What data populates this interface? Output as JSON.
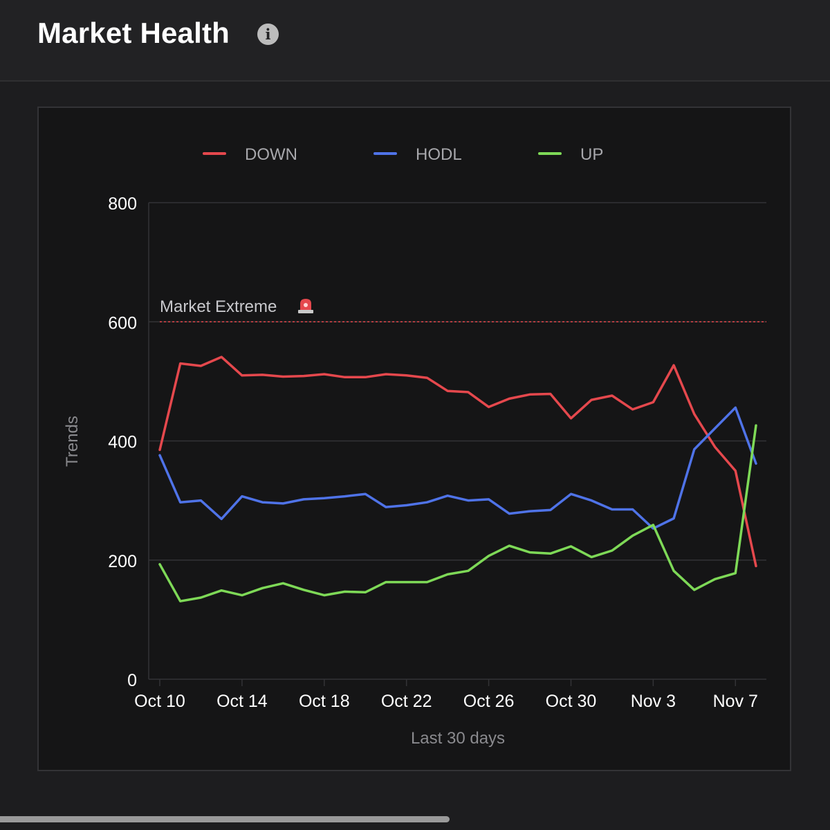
{
  "header": {
    "title": "Market Health",
    "info_icon": "info-icon"
  },
  "chart_data": {
    "type": "line",
    "xlabel": "Last 30 days",
    "ylabel": "Trends",
    "ylim": [
      0,
      800
    ],
    "yticks": [
      0,
      200,
      400,
      600,
      800
    ],
    "grid": true,
    "legend_position": "top",
    "x_tick_labels": [
      "Oct 10",
      "Oct 14",
      "Oct 18",
      "Oct 22",
      "Oct 26",
      "Oct 30",
      "Nov 3",
      "Nov 7"
    ],
    "x_tick_indices": [
      0,
      4,
      8,
      12,
      16,
      20,
      24,
      28
    ],
    "x": [
      "Oct 10",
      "Oct 11",
      "Oct 12",
      "Oct 13",
      "Oct 14",
      "Oct 15",
      "Oct 16",
      "Oct 17",
      "Oct 18",
      "Oct 19",
      "Oct 20",
      "Oct 21",
      "Oct 22",
      "Oct 23",
      "Oct 24",
      "Oct 25",
      "Oct 26",
      "Oct 27",
      "Oct 28",
      "Oct 29",
      "Oct 30",
      "Oct 31",
      "Nov 1",
      "Nov 2",
      "Nov 3",
      "Nov 4",
      "Nov 5",
      "Nov 6",
      "Nov 7",
      "Nov 8"
    ],
    "series": [
      {
        "name": "DOWN",
        "color": "#e5484d",
        "values": [
          385,
          530,
          526,
          541,
          510,
          511,
          508,
          509,
          512,
          507,
          507,
          512,
          510,
          506,
          484,
          482,
          457,
          471,
          478,
          479,
          438,
          469,
          476,
          453,
          465,
          527,
          445,
          390,
          350,
          190
        ]
      },
      {
        "name": "HODL",
        "color": "#4f73e8",
        "values": [
          376,
          297,
          300,
          269,
          307,
          297,
          295,
          302,
          304,
          307,
          311,
          289,
          292,
          297,
          308,
          300,
          302,
          278,
          282,
          284,
          311,
          300,
          285,
          285,
          253,
          270,
          386,
          421,
          456,
          362
        ]
      },
      {
        "name": "UP",
        "color": "#7ed957",
        "values": [
          193,
          131,
          137,
          149,
          141,
          153,
          161,
          150,
          141,
          147,
          146,
          163,
          163,
          163,
          176,
          182,
          207,
          224,
          213,
          211,
          223,
          205,
          216,
          241,
          259,
          182,
          150,
          168,
          178,
          426
        ]
      }
    ],
    "annotations": [
      {
        "type": "hline",
        "y": 600,
        "label": "Market Extreme",
        "icon": "siren-icon",
        "color": "#e5484d"
      }
    ],
    "colors": {
      "grid": "#333336",
      "axis_text": "#ffffff",
      "axis_title": "#8a8a8e",
      "legend_text": "#a8a8ac",
      "annotation_text": "#c8c8cc"
    }
  }
}
